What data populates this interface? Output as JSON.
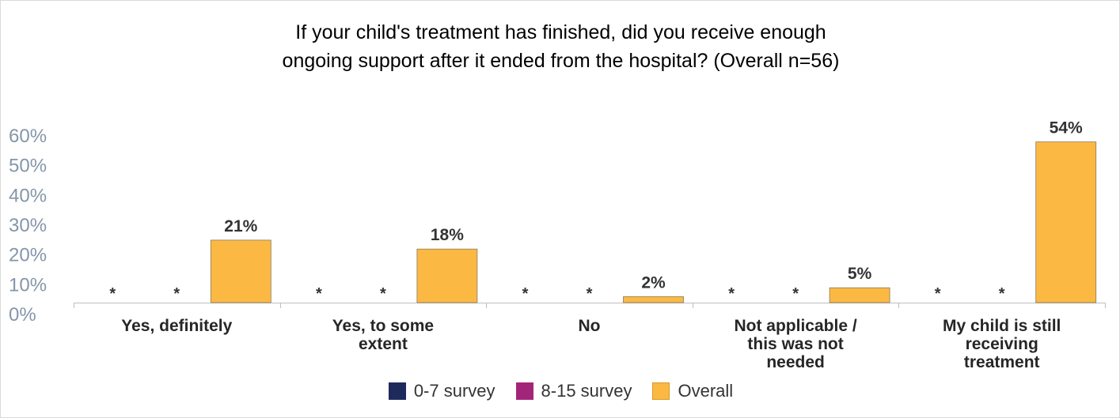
{
  "chart_data": {
    "type": "bar",
    "title_lines": [
      "If your child's treatment has finished, did you receive enough",
      "ongoing support after it ended from the hospital? (Overall n=56)"
    ],
    "categories": [
      [
        "Yes, definitely"
      ],
      [
        "Yes, to some",
        "extent"
      ],
      [
        "No"
      ],
      [
        "Not applicable /",
        "this was not",
        "needed"
      ],
      [
        "My child is still",
        "receiving",
        "treatment"
      ]
    ],
    "series": [
      {
        "name": "0-7 survey",
        "color": "#1f2a5c",
        "values": [
          null,
          null,
          null,
          null,
          null
        ],
        "labels": [
          "*",
          "*",
          "*",
          "*",
          "*"
        ]
      },
      {
        "name": "8-15 survey",
        "color": "#a3257a",
        "values": [
          null,
          null,
          null,
          null,
          null
        ],
        "labels": [
          "*",
          "*",
          "*",
          "*",
          "*"
        ]
      },
      {
        "name": "Overall",
        "color": "#fbb944",
        "values": [
          21,
          18,
          2,
          5,
          54
        ],
        "labels": [
          "21%",
          "18%",
          "2%",
          "5%",
          "54%"
        ]
      }
    ],
    "y_ticks": [
      "0%",
      "10%",
      "20%",
      "30%",
      "40%",
      "50%",
      "60%"
    ],
    "ylim": [
      0,
      60
    ],
    "grid": false,
    "legend_position": "bottom"
  }
}
